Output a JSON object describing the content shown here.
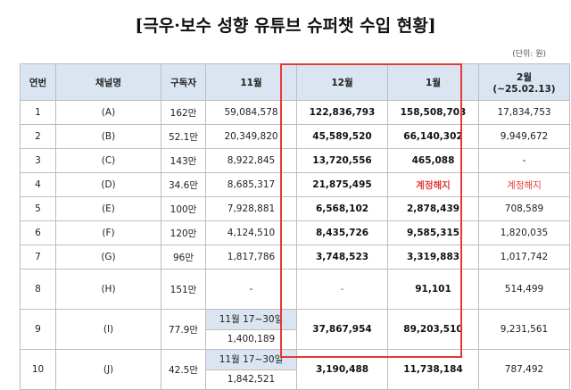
{
  "title": "[극우·보수 성향 유튜브 슈퍼챗 수입 현황]",
  "unit": "(단위: 원)",
  "headers": {
    "no": "연번",
    "channel": "채널명",
    "subs": "구독자",
    "nov": "11월",
    "dec": "12월",
    "jan": "1월",
    "feb": "2월",
    "feb_sub": "(~25.02.13)"
  },
  "rows": [
    {
      "no": "1",
      "channel": "(A)",
      "subs": "162만",
      "nov": "59,084,578",
      "dec": "122,836,793",
      "jan": "158,508,703",
      "feb": "17,834,753"
    },
    {
      "no": "2",
      "channel": "(B)",
      "subs": "52.1만",
      "nov": "20,349,820",
      "dec": "45,589,520",
      "jan": "66,140,302",
      "feb": "9,949,672"
    },
    {
      "no": "3",
      "channel": "(C)",
      "subs": "143만",
      "nov": "8,922,845",
      "dec": "13,720,556",
      "jan": "465,088",
      "feb": "-"
    },
    {
      "no": "4",
      "channel": "(D)",
      "subs": "34.6만",
      "nov": "8,685,317",
      "dec": "21,875,495",
      "jan": "계정해지",
      "feb": "계정해지"
    },
    {
      "no": "5",
      "channel": "(E)",
      "subs": "100만",
      "nov": "7,928,881",
      "dec": "6,568,102",
      "jan": "2,878,439",
      "feb": "708,589"
    },
    {
      "no": "6",
      "channel": "(F)",
      "subs": "120만",
      "nov": "4,124,510",
      "dec": "8,435,726",
      "jan": "9,585,315",
      "feb": "1,820,035"
    },
    {
      "no": "7",
      "channel": "(G)",
      "subs": "96만",
      "nov": "1,817,786",
      "dec": "3,748,523",
      "jan": "3,319,883",
      "feb": "1,017,742"
    },
    {
      "no": "8",
      "channel": "(H)",
      "subs": "151만",
      "nov": "-",
      "dec": "-",
      "jan": "91,101",
      "feb": "514,499"
    },
    {
      "no": "9",
      "channel": "(I)",
      "subs": "77.9만",
      "nov_note": "11월 17~30일",
      "nov": "1,400,189",
      "dec": "37,867,954",
      "jan": "89,203,510",
      "feb": "9,231,561"
    },
    {
      "no": "10",
      "channel": "(J)",
      "subs": "42.5만",
      "nov_note": "11월 17~30일",
      "nov": "1,842,521",
      "dec": "3,190,488",
      "jan": "11,738,184",
      "feb": "787,492"
    }
  ],
  "colors": {
    "header_bg": "#dbe5f1",
    "highlight_border": "#e53935",
    "terminated_text": "#e53935"
  }
}
